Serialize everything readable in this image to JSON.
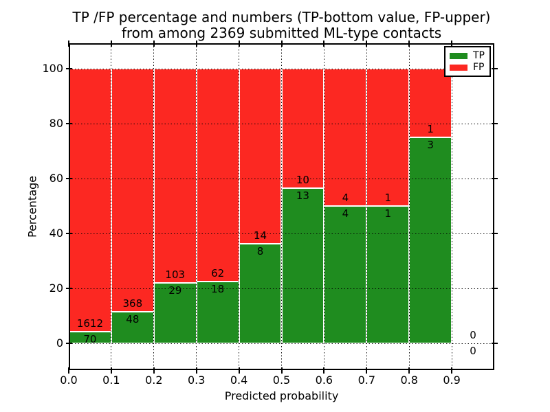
{
  "title": {
    "line1": "TP /FP percentage and numbers (TP-bottom value, FP-upper)",
    "line2": "from among 2369 submitted ML-type contacts"
  },
  "axes": {
    "xlabel": "Predicted probability",
    "ylabel": "Percentage",
    "x_tick_labels": [
      "0.0",
      "0.1",
      "0.2",
      "0.3",
      "0.4",
      "0.5",
      "0.6",
      "0.7",
      "0.8",
      "0.9"
    ],
    "y_tick_labels": [
      "0",
      "20",
      "40",
      "60",
      "80",
      "100"
    ],
    "xlim": [
      0.0,
      1.0
    ],
    "grid": "dotted black, both axes, drawn over bars"
  },
  "legend": {
    "position": "upper-right",
    "entries": [
      {
        "label": "TP",
        "color": "#1f8c1f"
      },
      {
        "label": "FP",
        "color": "#fc2822"
      }
    ]
  },
  "colors": {
    "tp_green": "#1f8c1f",
    "fp_red": "#fc2822",
    "bar_edge": "#ffffff",
    "text": "#000000",
    "background": "#ffffff"
  },
  "chart_data": {
    "type": "bar",
    "stacking": "percent",
    "title": "TP /FP percentage and numbers (TP-bottom value, FP-upper) from among 2369 submitted ML-type contacts",
    "xlabel": "Predicted probability",
    "ylabel": "Percentage",
    "total_contacts": 2369,
    "bin_width": 0.1,
    "categories": [
      "0.0-0.1",
      "0.1-0.2",
      "0.2-0.3",
      "0.3-0.4",
      "0.4-0.5",
      "0.5-0.6",
      "0.6-0.7",
      "0.7-0.8",
      "0.8-0.9",
      "0.9-1.0"
    ],
    "series": [
      {
        "name": "TP",
        "color": "#1f8c1f",
        "values": [
          70,
          48,
          29,
          18,
          8,
          13,
          4,
          1,
          3,
          0
        ]
      },
      {
        "name": "FP",
        "color": "#fc2822",
        "values": [
          1612,
          368,
          103,
          62,
          14,
          10,
          4,
          1,
          1,
          0
        ]
      }
    ],
    "tp_percent": [
      4.16,
      11.54,
      21.97,
      22.5,
      36.36,
      56.52,
      50.0,
      50.0,
      75.0,
      null
    ],
    "ylim": [
      0,
      100
    ],
    "note": "each non-empty bin stacks to 100%; bin 0.9-1.0 has no bar, only 0/0 labels"
  }
}
